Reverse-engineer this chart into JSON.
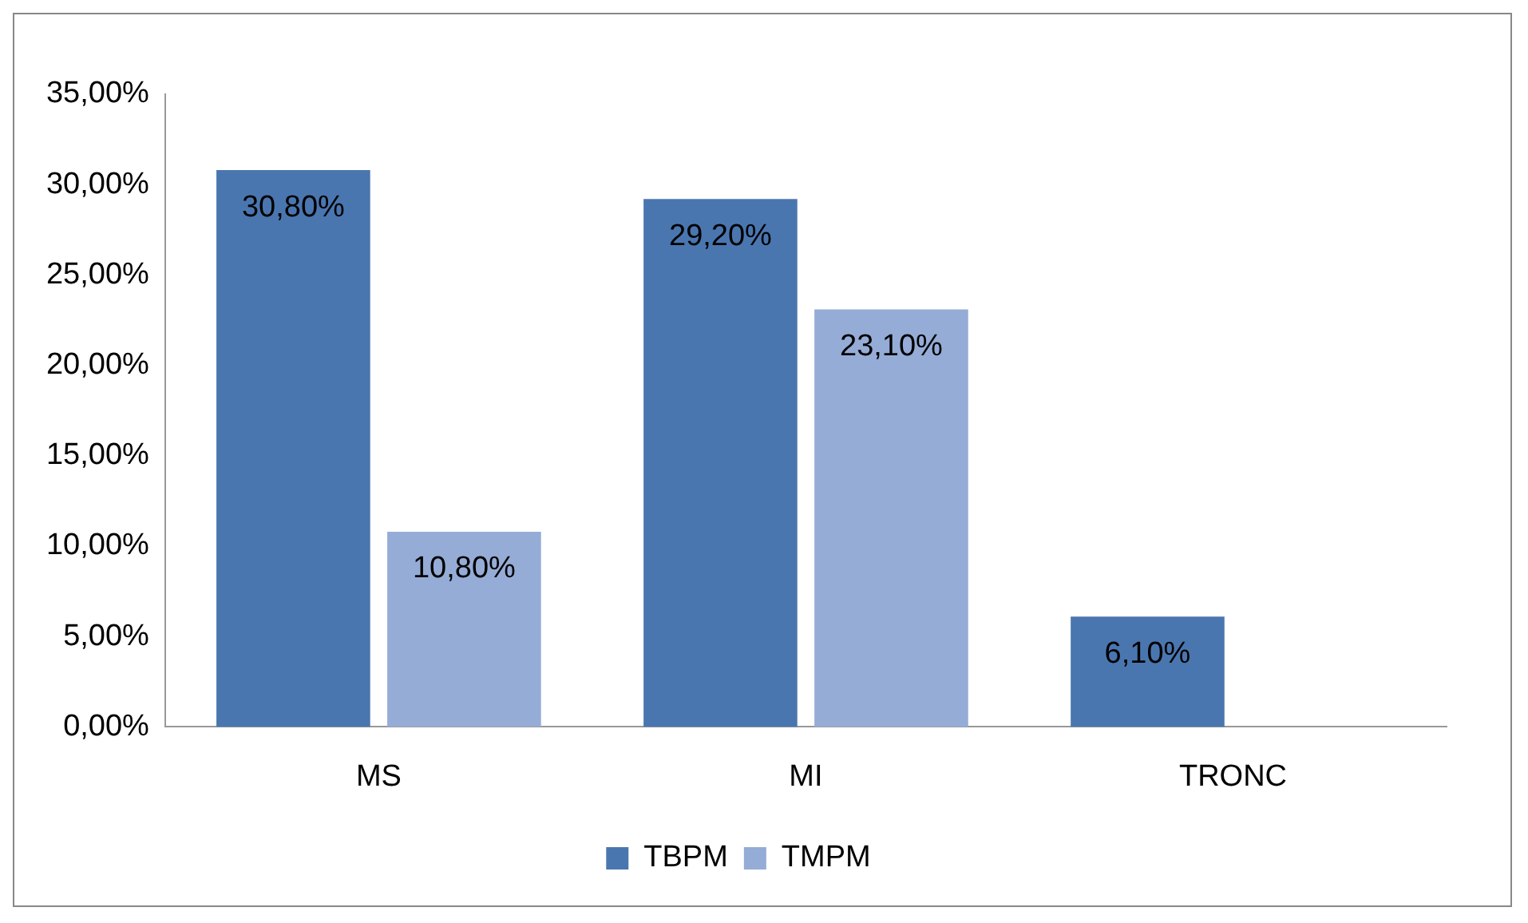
{
  "chart_data": {
    "type": "bar",
    "categories": [
      "MS",
      "MI",
      "TRONC"
    ],
    "series": [
      {
        "name": "TBPM",
        "color": "#4a76b0",
        "values": [
          30.8,
          29.2,
          6.1
        ],
        "value_labels": [
          "30,80%",
          "29,20%",
          "6,10%"
        ]
      },
      {
        "name": "TMPM",
        "color": "#95acd6",
        "values": [
          10.8,
          23.1,
          null
        ],
        "value_labels": [
          "10,80%",
          "23,10%",
          null
        ]
      }
    ],
    "ylim": [
      0,
      35
    ],
    "yticks": [
      {
        "value": 0,
        "label": "0,00%"
      },
      {
        "value": 5,
        "label": "5,00%"
      },
      {
        "value": 10,
        "label": "10,00%"
      },
      {
        "value": 15,
        "label": "15,00%"
      },
      {
        "value": 20,
        "label": "20,00%"
      },
      {
        "value": 25,
        "label": "25,00%"
      },
      {
        "value": 30,
        "label": "30,00%"
      },
      {
        "value": 35,
        "label": "35,00%"
      }
    ],
    "grid": false,
    "legend": "bottom"
  }
}
